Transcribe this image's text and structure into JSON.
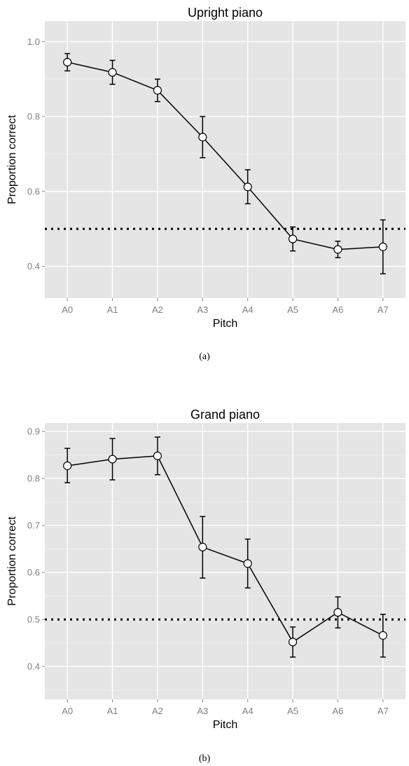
{
  "chart_data": [
    {
      "type": "line",
      "title": "Upright piano",
      "xlabel": "Pitch",
      "ylabel": "Proportion correct",
      "caption": "(a)",
      "categories": [
        "A0",
        "A1",
        "A2",
        "A3",
        "A4",
        "A5",
        "A6",
        "A7"
      ],
      "values": [
        0.945,
        0.918,
        0.87,
        0.745,
        0.612,
        0.473,
        0.445,
        0.452
      ],
      "error_low": [
        0.922,
        0.886,
        0.84,
        0.69,
        0.567,
        0.441,
        0.423,
        0.38
      ],
      "error_high": [
        0.968,
        0.95,
        0.9,
        0.8,
        0.658,
        0.505,
        0.467,
        0.524
      ],
      "reference_line": 0.5,
      "yticks": [
        0.4,
        0.6,
        0.8,
        1.0
      ],
      "ytick_labels": [
        "0.4",
        "0.6",
        "0.8",
        "1.0"
      ],
      "ylim": [
        0.315,
        1.055
      ],
      "grid": true
    },
    {
      "type": "line",
      "title": "Grand piano",
      "xlabel": "Pitch",
      "ylabel": "Proportion correct",
      "caption": "(b)",
      "categories": [
        "A0",
        "A1",
        "A2",
        "A3",
        "A4",
        "A5",
        "A6",
        "A7"
      ],
      "values": [
        0.827,
        0.841,
        0.848,
        0.654,
        0.619,
        0.452,
        0.515,
        0.466
      ],
      "error_low": [
        0.791,
        0.797,
        0.808,
        0.588,
        0.567,
        0.42,
        0.482,
        0.42
      ],
      "error_high": [
        0.864,
        0.885,
        0.888,
        0.719,
        0.671,
        0.484,
        0.548,
        0.511
      ],
      "reference_line": 0.5,
      "yticks": [
        0.4,
        0.5,
        0.6,
        0.7,
        0.8,
        0.9
      ],
      "ytick_labels": [
        "0.4",
        "0.5",
        "0.6",
        "0.7",
        "0.8",
        "0.9"
      ],
      "ylim": [
        0.33,
        0.918
      ],
      "grid": true
    }
  ]
}
